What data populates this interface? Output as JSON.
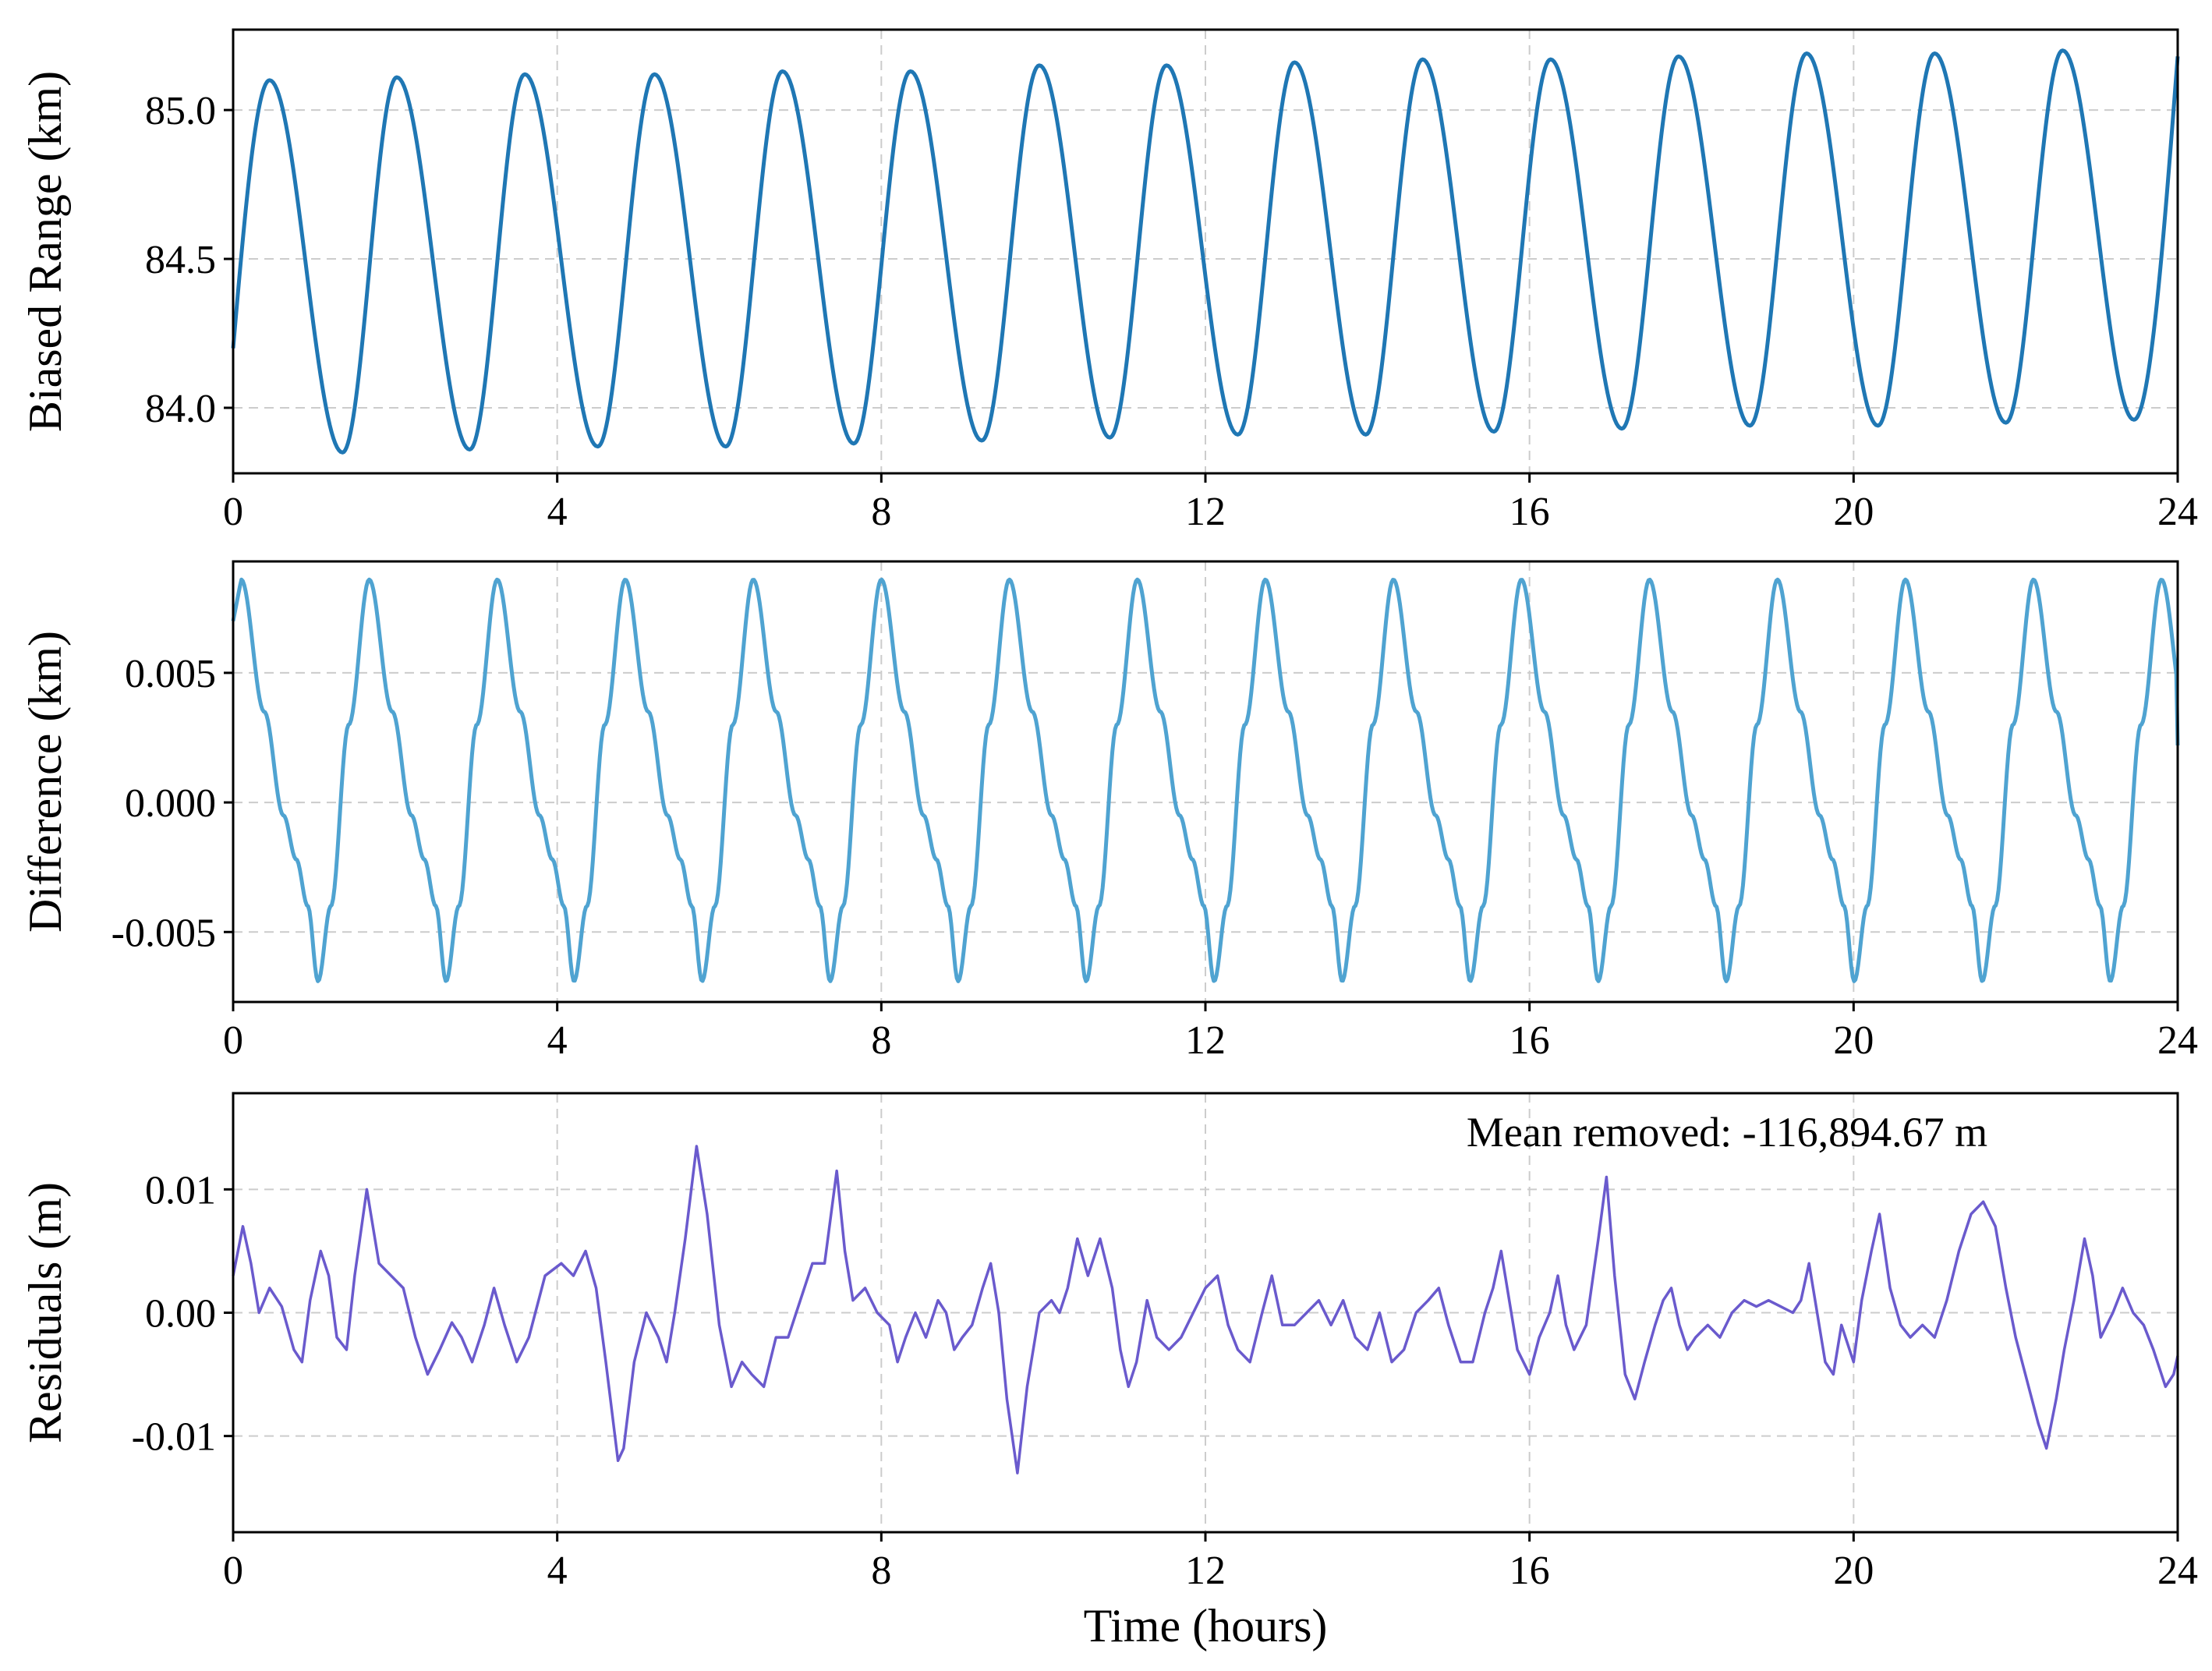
{
  "figure": {
    "xlabel": "Time (hours)"
  },
  "chart_data": [
    {
      "type": "line",
      "name": "biased-range",
      "ylabel": "Biased Range (km)",
      "xlim": [
        0,
        24
      ],
      "ylim": [
        83.78,
        85.27
      ],
      "xticks": [
        0,
        4,
        8,
        12,
        16,
        20,
        24
      ],
      "xtick_labels": [
        "0",
        "4",
        "8",
        "12",
        "16",
        "20",
        "24"
      ],
      "yticks": [
        84.0,
        84.5,
        85.0
      ],
      "ytick_labels": [
        "84.0",
        "84.5",
        "85.0"
      ],
      "grid": true,
      "color": "#1f77b4",
      "series": [
        {
          "name": "Biased Range",
          "model": "sinusoid",
          "start_value": 84.2,
          "peaks": [
            [
              0.45,
              85.1
            ],
            [
              2.02,
              85.11
            ],
            [
              3.6,
              85.12
            ],
            [
              5.2,
              85.12
            ],
            [
              6.78,
              85.13
            ],
            [
              8.36,
              85.13
            ],
            [
              9.95,
              85.15
            ],
            [
              11.52,
              85.15
            ],
            [
              13.1,
              85.16
            ],
            [
              14.68,
              85.17
            ],
            [
              16.26,
              85.17
            ],
            [
              17.84,
              85.18
            ],
            [
              19.42,
              85.19
            ],
            [
              21.0,
              85.19
            ],
            [
              22.58,
              85.2
            ]
          ],
          "troughs": [
            [
              1.35,
              83.85
            ],
            [
              2.92,
              83.86
            ],
            [
              4.5,
              83.87
            ],
            [
              6.08,
              83.87
            ],
            [
              7.66,
              83.88
            ],
            [
              9.24,
              83.89
            ],
            [
              10.82,
              83.9
            ],
            [
              12.4,
              83.91
            ],
            [
              13.98,
              83.91
            ],
            [
              15.56,
              83.92
            ],
            [
              17.14,
              83.93
            ],
            [
              18.72,
              83.94
            ],
            [
              20.3,
              83.94
            ],
            [
              21.88,
              83.95
            ],
            [
              23.46,
              83.96
            ]
          ],
          "end_value": 85.18
        }
      ]
    },
    {
      "type": "line",
      "name": "difference",
      "ylabel": "Difference (km)",
      "xlim": [
        0,
        24
      ],
      "ylim": [
        -0.0077,
        0.0093
      ],
      "xticks": [
        0,
        4,
        8,
        12,
        16,
        20,
        24
      ],
      "xtick_labels": [
        "0",
        "4",
        "8",
        "12",
        "16",
        "20",
        "24"
      ],
      "yticks": [
        -0.005,
        0.0,
        0.005
      ],
      "ytick_labels": [
        "-0.005",
        "0.000",
        "0.005"
      ],
      "grid": true,
      "color": "#4fa3d1",
      "series": [
        {
          "name": "Difference",
          "model": "asymmetric-periodic",
          "period_hours": 1.58,
          "first_peak_time": 0.1,
          "max": 0.0086,
          "min": -0.0069,
          "shoulder_value": -0.0022,
          "end_value": 0.0022
        }
      ]
    },
    {
      "type": "line",
      "name": "residuals",
      "ylabel": "Residuals (m)",
      "xlim": [
        0,
        24
      ],
      "ylim": [
        -0.0178,
        0.0178
      ],
      "xticks": [
        0,
        4,
        8,
        12,
        16,
        20,
        24
      ],
      "xtick_labels": [
        "0",
        "4",
        "8",
        "12",
        "16",
        "20",
        "24"
      ],
      "yticks": [
        -0.01,
        0.0,
        0.01
      ],
      "ytick_labels": [
        "-0.01",
        "0.00",
        "0.01"
      ],
      "grid": true,
      "color": "#6a5acd",
      "annotation": "Mean removed: -116,894.67 m",
      "series": [
        {
          "name": "Residuals",
          "points": [
            [
              0,
              0.003
            ],
            [
              0.12,
              0.007
            ],
            [
              0.22,
              0.004
            ],
            [
              0.32,
              0.0
            ],
            [
              0.45,
              0.002
            ],
            [
              0.6,
              0.0005
            ],
            [
              0.75,
              -0.003
            ],
            [
              0.85,
              -0.004
            ],
            [
              0.95,
              0.001
            ],
            [
              1.08,
              0.005
            ],
            [
              1.18,
              0.003
            ],
            [
              1.28,
              -0.002
            ],
            [
              1.4,
              -0.003
            ],
            [
              1.5,
              0.003
            ],
            [
              1.65,
              0.01
            ],
            [
              1.8,
              0.004
            ],
            [
              1.95,
              0.003
            ],
            [
              2.1,
              0.002
            ],
            [
              2.25,
              -0.002
            ],
            [
              2.4,
              -0.005
            ],
            [
              2.55,
              -0.003
            ],
            [
              2.7,
              -0.0008
            ],
            [
              2.82,
              -0.002
            ],
            [
              2.95,
              -0.004
            ],
            [
              3.1,
              -0.001
            ],
            [
              3.22,
              0.002
            ],
            [
              3.35,
              -0.001
            ],
            [
              3.5,
              -0.004
            ],
            [
              3.65,
              -0.002
            ],
            [
              3.85,
              0.003
            ],
            [
              4.05,
              0.004
            ],
            [
              4.2,
              0.003
            ],
            [
              4.35,
              0.005
            ],
            [
              4.48,
              0.002
            ],
            [
              4.6,
              -0.004
            ],
            [
              4.75,
              -0.012
            ],
            [
              4.82,
              -0.011
            ],
            [
              4.95,
              -0.004
            ],
            [
              5.1,
              0.0
            ],
            [
              5.25,
              -0.002
            ],
            [
              5.35,
              -0.004
            ],
            [
              5.45,
              0.0
            ],
            [
              5.58,
              0.006
            ],
            [
              5.72,
              0.0135
            ],
            [
              5.85,
              0.008
            ],
            [
              6.0,
              -0.001
            ],
            [
              6.15,
              -0.006
            ],
            [
              6.28,
              -0.004
            ],
            [
              6.4,
              -0.005
            ],
            [
              6.55,
              -0.006
            ],
            [
              6.7,
              -0.002
            ],
            [
              6.85,
              -0.002
            ],
            [
              7.0,
              0.001
            ],
            [
              7.15,
              0.004
            ],
            [
              7.3,
              0.004
            ],
            [
              7.45,
              0.0115
            ],
            [
              7.55,
              0.005
            ],
            [
              7.65,
              0.001
            ],
            [
              7.8,
              0.002
            ],
            [
              7.95,
              0.0
            ],
            [
              8.1,
              -0.001
            ],
            [
              8.2,
              -0.004
            ],
            [
              8.3,
              -0.002
            ],
            [
              8.42,
              0.0
            ],
            [
              8.55,
              -0.002
            ],
            [
              8.7,
              0.001
            ],
            [
              8.8,
              0.0
            ],
            [
              8.9,
              -0.003
            ],
            [
              9.0,
              -0.002
            ],
            [
              9.12,
              -0.001
            ],
            [
              9.25,
              0.002
            ],
            [
              9.35,
              0.004
            ],
            [
              9.45,
              0.0
            ],
            [
              9.55,
              -0.007
            ],
            [
              9.68,
              -0.013
            ],
            [
              9.8,
              -0.006
            ],
            [
              9.95,
              0.0
            ],
            [
              10.1,
              0.001
            ],
            [
              10.2,
              0.0
            ],
            [
              10.3,
              0.002
            ],
            [
              10.42,
              0.006
            ],
            [
              10.55,
              0.003
            ],
            [
              10.7,
              0.006
            ],
            [
              10.85,
              0.002
            ],
            [
              10.95,
              -0.003
            ],
            [
              11.05,
              -0.006
            ],
            [
              11.15,
              -0.004
            ],
            [
              11.28,
              0.001
            ],
            [
              11.4,
              -0.002
            ],
            [
              11.55,
              -0.003
            ],
            [
              11.7,
              -0.002
            ],
            [
              11.85,
              0.0
            ],
            [
              12.0,
              0.002
            ],
            [
              12.15,
              0.003
            ],
            [
              12.28,
              -0.001
            ],
            [
              12.4,
              -0.003
            ],
            [
              12.55,
              -0.004
            ],
            [
              12.7,
              0.0
            ],
            [
              12.82,
              0.003
            ],
            [
              12.95,
              -0.001
            ],
            [
              13.1,
              -0.001
            ],
            [
              13.25,
              0.0
            ],
            [
              13.4,
              0.001
            ],
            [
              13.55,
              -0.001
            ],
            [
              13.7,
              0.001
            ],
            [
              13.85,
              -0.002
            ],
            [
              14.0,
              -0.003
            ],
            [
              14.15,
              0.0
            ],
            [
              14.3,
              -0.004
            ],
            [
              14.45,
              -0.003
            ],
            [
              14.6,
              0.0
            ],
            [
              14.75,
              0.001
            ],
            [
              14.88,
              0.002
            ],
            [
              15.0,
              -0.001
            ],
            [
              15.15,
              -0.004
            ],
            [
              15.3,
              -0.004
            ],
            [
              15.45,
              0.0
            ],
            [
              15.55,
              0.002
            ],
            [
              15.65,
              0.005
            ],
            [
              15.75,
              0.001
            ],
            [
              15.85,
              -0.003
            ],
            [
              16.0,
              -0.005
            ],
            [
              16.12,
              -0.002
            ],
            [
              16.25,
              0.0
            ],
            [
              16.35,
              0.003
            ],
            [
              16.45,
              -0.001
            ],
            [
              16.55,
              -0.003
            ],
            [
              16.7,
              -0.001
            ],
            [
              16.85,
              0.006
            ],
            [
              16.95,
              0.011
            ],
            [
              17.05,
              0.003
            ],
            [
              17.18,
              -0.005
            ],
            [
              17.3,
              -0.007
            ],
            [
              17.42,
              -0.004
            ],
            [
              17.55,
              -0.001
            ],
            [
              17.65,
              0.001
            ],
            [
              17.75,
              0.002
            ],
            [
              17.85,
              -0.001
            ],
            [
              17.95,
              -0.003
            ],
            [
              18.05,
              -0.002
            ],
            [
              18.2,
              -0.001
            ],
            [
              18.35,
              -0.002
            ],
            [
              18.5,
              0.0
            ],
            [
              18.65,
              0.001
            ],
            [
              18.8,
              0.0005
            ],
            [
              18.95,
              0.001
            ],
            [
              19.1,
              0.0005
            ],
            [
              19.25,
              0.0
            ],
            [
              19.35,
              0.001
            ],
            [
              19.45,
              0.004
            ],
            [
              19.55,
              0.0
            ],
            [
              19.65,
              -0.004
            ],
            [
              19.75,
              -0.005
            ],
            [
              19.85,
              -0.001
            ],
            [
              20.0,
              -0.004
            ],
            [
              20.1,
              0.001
            ],
            [
              20.22,
              0.005
            ],
            [
              20.32,
              0.008
            ],
            [
              20.45,
              0.002
            ],
            [
              20.58,
              -0.001
            ],
            [
              20.7,
              -0.002
            ],
            [
              20.85,
              -0.001
            ],
            [
              21.0,
              -0.002
            ],
            [
              21.15,
              0.001
            ],
            [
              21.3,
              0.005
            ],
            [
              21.45,
              0.008
            ],
            [
              21.6,
              0.009
            ],
            [
              21.75,
              0.007
            ],
            [
              21.88,
              0.002
            ],
            [
              22.0,
              -0.002
            ],
            [
              22.12,
              -0.005
            ],
            [
              22.28,
              -0.009
            ],
            [
              22.38,
              -0.011
            ],
            [
              22.5,
              -0.007
            ],
            [
              22.6,
              -0.003
            ],
            [
              22.72,
              0.001
            ],
            [
              22.85,
              0.006
            ],
            [
              22.95,
              0.003
            ],
            [
              23.05,
              -0.002
            ],
            [
              23.2,
              0.0
            ],
            [
              23.32,
              0.002
            ],
            [
              23.45,
              0.0
            ],
            [
              23.58,
              -0.001
            ],
            [
              23.7,
              -0.003
            ],
            [
              23.85,
              -0.006
            ],
            [
              23.95,
              -0.005
            ],
            [
              24.0,
              -0.0035
            ]
          ]
        }
      ]
    }
  ]
}
